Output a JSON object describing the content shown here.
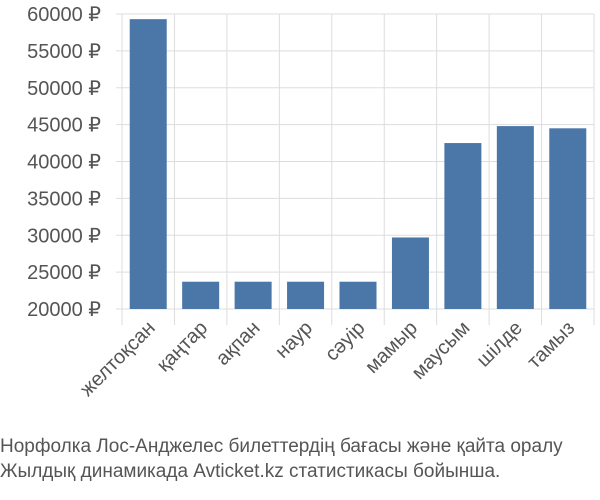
{
  "chart_data": {
    "type": "bar",
    "categories": [
      "желтоқсан",
      "қаңтар",
      "ақпан",
      "наур",
      "сәуір",
      "мамыр",
      "маусым",
      "шілде",
      "тамыз"
    ],
    "values": [
      59300,
      23700,
      23700,
      23700,
      23700,
      29700,
      42500,
      44800,
      44500
    ],
    "ylim": [
      20000,
      60000
    ],
    "yticks": [
      20000,
      25000,
      30000,
      35000,
      40000,
      45000,
      50000,
      55000,
      60000
    ],
    "ytick_labels": [
      "20000 ₽",
      "25000 ₽",
      "30000 ₽",
      "35000 ₽",
      "40000 ₽",
      "45000 ₽",
      "50000 ₽",
      "55000 ₽",
      "60000 ₽"
    ],
    "grid": true,
    "bar_color": "#4a76a8",
    "grid_color": "#dddddd",
    "caption_lines": [
      "Норфолка Лос-Анджелес билеттердің бағасы және қайта оралу",
      "Жылдық динамикада Avticket.kz статистикасы бойынша."
    ]
  }
}
